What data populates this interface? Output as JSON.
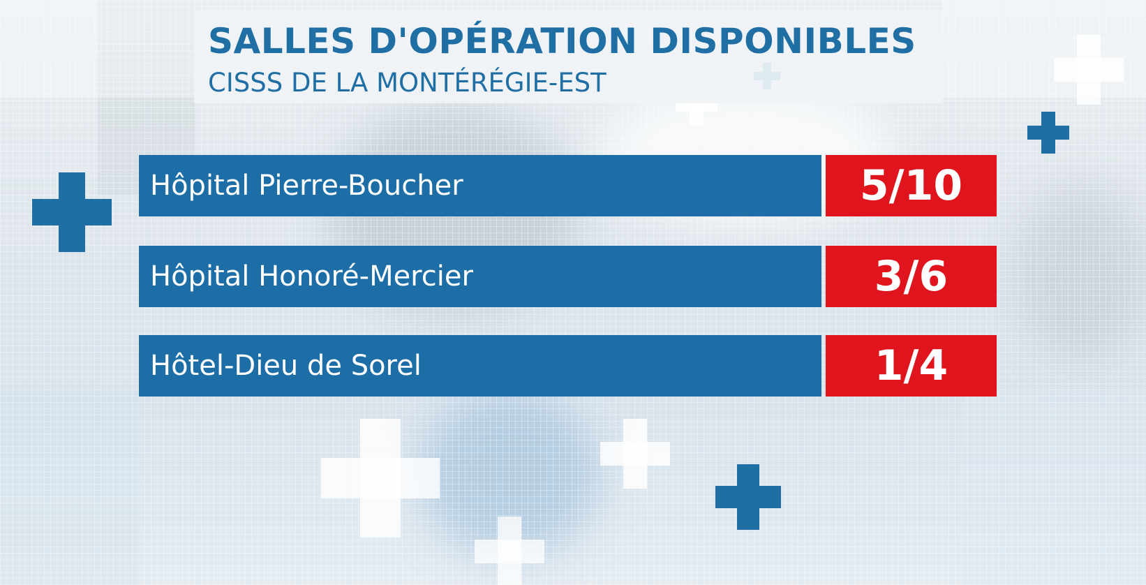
{
  "header": {
    "title": "SALLES D'OPÉRATION DISPONIBLES",
    "subtitle": "CISSS DE LA MONTÉRÉGIE-EST"
  },
  "hospitals": [
    {
      "name": "Hôpital Pierre-Boucher",
      "available": "5/10"
    },
    {
      "name": "Hôpital Honoré-Mercier",
      "available": "3/6"
    },
    {
      "name": "Hôtel-Dieu de Sorel",
      "available": "1/4"
    }
  ],
  "colors": {
    "primary_blue": "#1d6ea6",
    "accent_red": "#e0141c",
    "title_blue": "#1f6fa5"
  },
  "icons": [
    "medical-cross-icon"
  ]
}
